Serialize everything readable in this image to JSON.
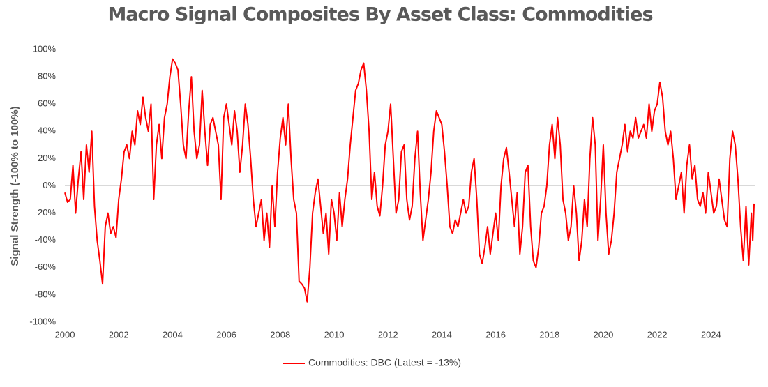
{
  "chart_data": {
    "type": "line",
    "title": "Macro Signal Composites By Asset Class: Commodities",
    "y_label": "Signal Strength (-100% to 100%)",
    "xlim": [
      2000,
      2025.65
    ],
    "xticks": [
      2000,
      2002,
      2004,
      2006,
      2008,
      2010,
      2012,
      2014,
      2016,
      2018,
      2020,
      2022,
      2024
    ],
    "ylim": [
      -100,
      100
    ],
    "yticks": [
      {
        "value": -100,
        "label": "-100%"
      },
      {
        "value": -80,
        "label": "-80%"
      },
      {
        "value": -60,
        "label": "-60%"
      },
      {
        "value": -40,
        "label": "-40%"
      },
      {
        "value": -20,
        "label": "-20%"
      },
      {
        "value": 0,
        "label": "0%"
      },
      {
        "value": 20,
        "label": "20%"
      },
      {
        "value": 40,
        "label": "40%"
      },
      {
        "value": 60,
        "label": "60%"
      },
      {
        "value": 80,
        "label": "80%"
      },
      {
        "value": 100,
        "label": "100%"
      }
    ],
    "legend": "bottom",
    "series": [
      {
        "name": "Commodities: DBC (Latest = -13%)",
        "color": "#ff0000",
        "x": [
          2000.0,
          2000.1,
          2000.2,
          2000.3,
          2000.4,
          2000.5,
          2000.6,
          2000.7,
          2000.8,
          2000.9,
          2001.0,
          2001.1,
          2001.2,
          2001.3,
          2001.4,
          2001.5,
          2001.6,
          2001.7,
          2001.8,
          2001.9,
          2002.0,
          2002.1,
          2002.2,
          2002.3,
          2002.4,
          2002.5,
          2002.6,
          2002.7,
          2002.8,
          2002.9,
          2003.0,
          2003.1,
          2003.2,
          2003.3,
          2003.4,
          2003.5,
          2003.6,
          2003.7,
          2003.8,
          2003.9,
          2004.0,
          2004.1,
          2004.2,
          2004.3,
          2004.4,
          2004.5,
          2004.6,
          2004.7,
          2004.8,
          2004.9,
          2005.0,
          2005.1,
          2005.2,
          2005.3,
          2005.4,
          2005.5,
          2005.6,
          2005.7,
          2005.8,
          2005.9,
          2006.0,
          2006.1,
          2006.2,
          2006.3,
          2006.4,
          2006.5,
          2006.6,
          2006.7,
          2006.8,
          2006.9,
          2007.0,
          2007.1,
          2007.2,
          2007.3,
          2007.4,
          2007.5,
          2007.6,
          2007.7,
          2007.8,
          2007.9,
          2008.0,
          2008.1,
          2008.2,
          2008.3,
          2008.4,
          2008.5,
          2008.6,
          2008.7,
          2008.8,
          2008.9,
          2009.0,
          2009.1,
          2009.2,
          2009.3,
          2009.4,
          2009.5,
          2009.6,
          2009.7,
          2009.8,
          2009.9,
          2010.0,
          2010.1,
          2010.2,
          2010.3,
          2010.4,
          2010.5,
          2010.6,
          2010.7,
          2010.8,
          2010.9,
          2011.0,
          2011.1,
          2011.2,
          2011.3,
          2011.4,
          2011.5,
          2011.6,
          2011.7,
          2011.8,
          2011.9,
          2012.0,
          2012.1,
          2012.2,
          2012.3,
          2012.4,
          2012.5,
          2012.6,
          2012.7,
          2012.8,
          2012.9,
          2013.0,
          2013.1,
          2013.2,
          2013.3,
          2013.4,
          2013.5,
          2013.6,
          2013.7,
          2013.8,
          2013.9,
          2014.0,
          2014.1,
          2014.2,
          2014.3,
          2014.4,
          2014.5,
          2014.6,
          2014.7,
          2014.8,
          2014.9,
          2015.0,
          2015.1,
          2015.2,
          2015.3,
          2015.4,
          2015.5,
          2015.6,
          2015.7,
          2015.8,
          2015.9,
          2016.0,
          2016.1,
          2016.2,
          2016.3,
          2016.4,
          2016.5,
          2016.6,
          2016.7,
          2016.8,
          2016.9,
          2017.0,
          2017.1,
          2017.2,
          2017.3,
          2017.4,
          2017.5,
          2017.6,
          2017.7,
          2017.8,
          2017.9,
          2018.0,
          2018.1,
          2018.2,
          2018.3,
          2018.4,
          2018.5,
          2018.6,
          2018.7,
          2018.8,
          2018.9,
          2019.0,
          2019.1,
          2019.2,
          2019.3,
          2019.4,
          2019.5,
          2019.6,
          2019.7,
          2019.8,
          2019.9,
          2020.0,
          2020.1,
          2020.2,
          2020.3,
          2020.4,
          2020.5,
          2020.6,
          2020.7,
          2020.8,
          2020.9,
          2021.0,
          2021.1,
          2021.2,
          2021.3,
          2021.4,
          2021.5,
          2021.6,
          2021.7,
          2021.8,
          2021.9,
          2022.0,
          2022.1,
          2022.2,
          2022.3,
          2022.4,
          2022.5,
          2022.6,
          2022.7,
          2022.8,
          2022.9,
          2023.0,
          2023.1,
          2023.2,
          2023.3,
          2023.4,
          2023.5,
          2023.6,
          2023.7,
          2023.8,
          2023.9,
          2024.0,
          2024.1,
          2024.2,
          2024.3,
          2024.4,
          2024.5,
          2024.6,
          2024.7,
          2024.8,
          2024.9,
          2025.0,
          2025.1,
          2025.2,
          2025.3,
          2025.4,
          2025.5,
          2025.55,
          2025.6
        ],
        "values": [
          -5,
          -12,
          -10,
          15,
          -20,
          5,
          25,
          -10,
          30,
          10,
          40,
          -15,
          -40,
          -55,
          -72,
          -30,
          -20,
          -35,
          -30,
          -38,
          -10,
          5,
          25,
          30,
          20,
          40,
          30,
          55,
          45,
          65,
          50,
          40,
          60,
          -10,
          30,
          45,
          20,
          50,
          60,
          80,
          93,
          90,
          85,
          60,
          30,
          20,
          55,
          80,
          40,
          20,
          30,
          70,
          40,
          15,
          45,
          50,
          40,
          30,
          -10,
          50,
          60,
          45,
          30,
          55,
          40,
          10,
          30,
          60,
          45,
          20,
          -10,
          -30,
          -20,
          -10,
          -40,
          -20,
          -45,
          0,
          -30,
          10,
          35,
          50,
          30,
          60,
          20,
          -10,
          -20,
          -70,
          -72,
          -75,
          -85,
          -60,
          -20,
          -5,
          5,
          -15,
          -35,
          -20,
          -50,
          -10,
          -20,
          -40,
          -5,
          -30,
          -10,
          5,
          30,
          50,
          70,
          75,
          85,
          90,
          70,
          40,
          -10,
          10,
          -15,
          -22,
          0,
          30,
          40,
          60,
          20,
          -20,
          -10,
          25,
          30,
          -10,
          -25,
          -15,
          20,
          40,
          -5,
          -40,
          -25,
          -10,
          10,
          40,
          55,
          50,
          45,
          25,
          0,
          -30,
          -35,
          -25,
          -30,
          -20,
          -10,
          -20,
          -15,
          10,
          20,
          -10,
          -50,
          -57,
          -45,
          -30,
          -50,
          -35,
          -20,
          -40,
          0,
          20,
          28,
          10,
          -10,
          -30,
          -5,
          -50,
          -30,
          10,
          15,
          -30,
          -55,
          -60,
          -45,
          -20,
          -15,
          0,
          30,
          45,
          20,
          50,
          30,
          -10,
          -20,
          -40,
          -30,
          0,
          -20,
          -55,
          -40,
          -10,
          -30,
          20,
          50,
          30,
          -40,
          -10,
          30,
          -20,
          -50,
          -40,
          -20,
          10,
          20,
          30,
          45,
          25,
          40,
          35,
          50,
          35,
          40,
          45,
          35,
          60,
          40,
          55,
          60,
          76,
          65,
          40,
          30,
          40,
          20,
          -10,
          0,
          10,
          -20,
          15,
          30,
          5,
          15,
          -10,
          -15,
          -5,
          -20,
          10,
          -5,
          -20,
          -15,
          5,
          -10,
          -25,
          -30,
          20,
          40,
          30,
          5,
          -30,
          -55,
          -15,
          -58,
          -20,
          -40,
          -13
        ]
      }
    ]
  }
}
